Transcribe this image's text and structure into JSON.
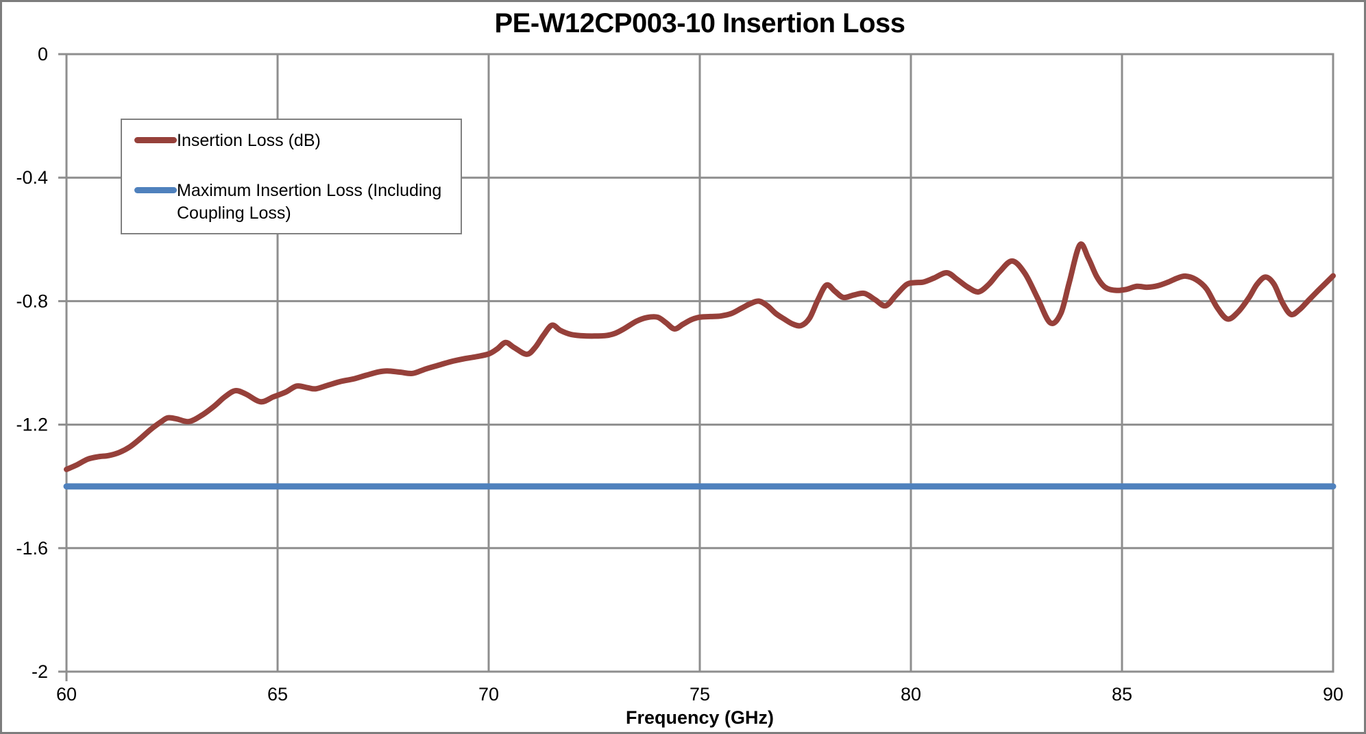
{
  "chart_data": {
    "type": "line",
    "title": "PE-W12CP003-10 Insertion Loss",
    "xlabel": "Frequency (GHz)",
    "ylabel": "",
    "xlim": [
      60,
      90
    ],
    "ylim": [
      -2,
      0
    ],
    "x_ticks": [
      60,
      65,
      70,
      75,
      80,
      85,
      90
    ],
    "x_tick_labels": [
      "60",
      "65",
      "70",
      "75",
      "80",
      "85",
      "90"
    ],
    "y_ticks": [
      0,
      -0.4,
      -0.8,
      -1.2,
      -1.6,
      -2
    ],
    "y_tick_labels": [
      "0",
      "-0.4",
      "-0.8",
      "-1.2",
      "-1.6",
      "-2"
    ],
    "grid": true,
    "legend_position": "inside-upper-left",
    "series": [
      {
        "name": "Insertion Loss (dB)",
        "color": "#96403A",
        "x": [
          60,
          60.25,
          60.5,
          60.75,
          61,
          61.25,
          61.5,
          61.75,
          62,
          62.25,
          62.4,
          62.6,
          62.9,
          63.2,
          63.5,
          63.75,
          64,
          64.25,
          64.6,
          64.9,
          65.2,
          65.45,
          65.7,
          65.9,
          66.2,
          66.5,
          66.8,
          67.1,
          67.4,
          67.6,
          67.9,
          68.2,
          68.5,
          68.8,
          69.1,
          69.4,
          69.7,
          70,
          70.2,
          70.4,
          70.6,
          70.9,
          71.1,
          71.3,
          71.5,
          71.7,
          71.95,
          72.2,
          72.5,
          72.8,
          73,
          73.2,
          73.5,
          73.75,
          74,
          74.2,
          74.4,
          74.6,
          74.8,
          75,
          75.25,
          75.5,
          75.75,
          76,
          76.2,
          76.4,
          76.6,
          76.8,
          77,
          77.2,
          77.4,
          77.6,
          77.8,
          78,
          78.2,
          78.4,
          78.65,
          78.9,
          79.15,
          79.4,
          79.65,
          79.9,
          80.1,
          80.3,
          80.55,
          80.85,
          81.1,
          81.35,
          81.6,
          81.85,
          82.1,
          82.4,
          82.7,
          83,
          83.3,
          83.55,
          83.75,
          84,
          84.2,
          84.4,
          84.6,
          84.85,
          85.1,
          85.35,
          85.6,
          85.85,
          86.1,
          86.3,
          86.5,
          86.75,
          87,
          87.25,
          87.5,
          87.75,
          88,
          88.2,
          88.4,
          88.6,
          88.8,
          89,
          89.2,
          89.4,
          89.6,
          89.8,
          90
        ],
        "y": [
          -1.345,
          -1.33,
          -1.312,
          -1.304,
          -1.3,
          -1.29,
          -1.272,
          -1.245,
          -1.215,
          -1.19,
          -1.178,
          -1.181,
          -1.19,
          -1.17,
          -1.14,
          -1.11,
          -1.09,
          -1.101,
          -1.126,
          -1.11,
          -1.094,
          -1.075,
          -1.08,
          -1.084,
          -1.072,
          -1.06,
          -1.052,
          -1.04,
          -1.029,
          -1.026,
          -1.03,
          -1.034,
          -1.02,
          -1.008,
          -0.996,
          -0.987,
          -0.98,
          -0.971,
          -0.955,
          -0.934,
          -0.95,
          -0.972,
          -0.95,
          -0.91,
          -0.878,
          -0.895,
          -0.908,
          -0.912,
          -0.913,
          -0.911,
          -0.904,
          -0.89,
          -0.865,
          -0.853,
          -0.852,
          -0.87,
          -0.89,
          -0.875,
          -0.86,
          -0.852,
          -0.85,
          -0.848,
          -0.84,
          -0.822,
          -0.808,
          -0.8,
          -0.815,
          -0.84,
          -0.858,
          -0.874,
          -0.879,
          -0.855,
          -0.795,
          -0.748,
          -0.768,
          -0.788,
          -0.78,
          -0.775,
          -0.795,
          -0.815,
          -0.78,
          -0.746,
          -0.74,
          -0.738,
          -0.725,
          -0.708,
          -0.73,
          -0.755,
          -0.77,
          -0.745,
          -0.705,
          -0.67,
          -0.71,
          -0.79,
          -0.87,
          -0.84,
          -0.74,
          -0.618,
          -0.66,
          -0.72,
          -0.755,
          -0.765,
          -0.762,
          -0.752,
          -0.755,
          -0.75,
          -0.738,
          -0.726,
          -0.719,
          -0.73,
          -0.76,
          -0.82,
          -0.858,
          -0.835,
          -0.79,
          -0.745,
          -0.722,
          -0.745,
          -0.805,
          -0.843,
          -0.828,
          -0.8,
          -0.772,
          -0.745,
          -0.718
        ]
      },
      {
        "name": "Maximum Insertion Loss (Including Coupling Loss)",
        "color": "#4F81BD",
        "x": [
          60,
          90
        ],
        "y": [
          -1.4,
          -1.4
        ]
      }
    ]
  },
  "colors": {
    "gridline": "#8E8E8E",
    "axis": "#8E8E8E",
    "tick_label": "#000000",
    "frame_border": "#7D7D7D",
    "legend_border": "#808080"
  }
}
